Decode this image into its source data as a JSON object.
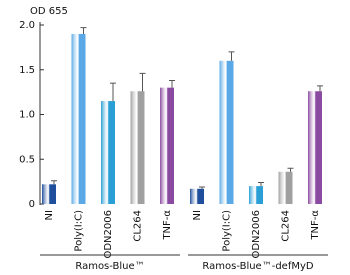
{
  "chart_data": {
    "type": "bar",
    "y_label": "OD 655",
    "ylim": [
      0,
      2
    ],
    "yticks": [
      0,
      0.5,
      {
        "value": 1,
        "label": "1.0"
      },
      1.5,
      {
        "value": 2,
        "label": "2.0"
      }
    ],
    "colors": [
      "#1f4e9c",
      "#5aa9e6",
      "#2a9fd6",
      "#a0a0a0",
      "#8a4aa0"
    ],
    "groups": [
      {
        "name": "Ramos-Blue™",
        "categories": [
          "NI",
          "Poly(I:C)",
          "ODN2006",
          "CL264",
          "TNF-α"
        ],
        "values": [
          0.22,
          1.9,
          1.15,
          1.26,
          1.3
        ],
        "errors": [
          0.04,
          0.07,
          0.2,
          0.2,
          0.08
        ]
      },
      {
        "name": "Ramos-Blue™-defMyD",
        "categories": [
          "NI",
          "Poly(I:C)",
          "ODN2006",
          "CL264",
          "TNF-α"
        ],
        "values": [
          0.17,
          1.6,
          0.2,
          0.36,
          1.26
        ],
        "errors": [
          0.02,
          0.1,
          0.04,
          0.04,
          0.06
        ]
      }
    ]
  }
}
